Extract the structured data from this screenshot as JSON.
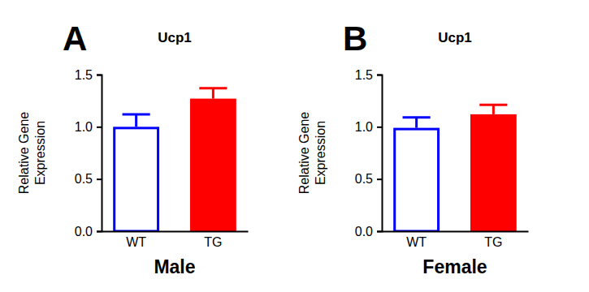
{
  "chart_data": [
    {
      "type": "bar",
      "title": "Ucp1",
      "annotations": [
        "A"
      ],
      "y_label": "Relative Gene\nExpression",
      "x_label": "Male",
      "categories": [
        "WT",
        "TG"
      ],
      "values": [
        1.0,
        1.27
      ],
      "errors": [
        0.12,
        0.1
      ],
      "colors": [
        "#0000ff",
        "#ff0000"
      ],
      "ylim": [
        0,
        1.5
      ],
      "yticks": [
        {
          "value": 0,
          "label": "0.0"
        },
        0.5,
        {
          "value": 1,
          "label": "1.0"
        },
        1.5
      ],
      "grid": false
    },
    {
      "type": "bar",
      "title": "Ucp1",
      "annotations": [
        "B"
      ],
      "y_label": "Relative Gene\nExpression",
      "x_label": "Female",
      "categories": [
        "WT",
        "TG"
      ],
      "values": [
        0.99,
        1.12
      ],
      "errors": [
        0.1,
        0.09
      ],
      "colors": [
        "#0000ff",
        "#ff0000"
      ],
      "ylim": [
        0,
        1.5
      ],
      "yticks": [
        {
          "value": 0,
          "label": "0.0"
        },
        0.5,
        {
          "value": 1,
          "label": "1.0"
        },
        1.5
      ],
      "grid": false
    }
  ]
}
